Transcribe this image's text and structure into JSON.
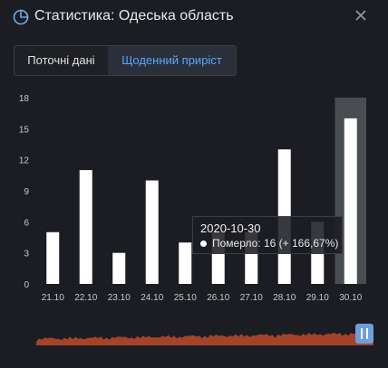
{
  "header": {
    "title": "Статистика: Одеська область",
    "icon": "pie-chart-icon",
    "close_icon": "close-icon"
  },
  "tabs": [
    {
      "label": "Поточні дані",
      "active": false
    },
    {
      "label": "Щоденний приріст",
      "active": true
    }
  ],
  "colors": {
    "background": "#1b1d22",
    "bar": "#ffffff",
    "accent": "#5aa8ff",
    "navigator": "#d2502d",
    "highlight": "#5a5d63"
  },
  "chart_data": {
    "type": "bar",
    "categories": [
      "21.10",
      "22.10",
      "23.10",
      "24.10",
      "25.10",
      "26.10",
      "27.10",
      "28.10",
      "29.10",
      "30.10"
    ],
    "series": [
      {
        "name": "Померло",
        "values": [
          5,
          11,
          3,
          10,
          4,
          5,
          5,
          13,
          6,
          16
        ]
      }
    ],
    "yticks": [
      0,
      3,
      6,
      9,
      12,
      15,
      18
    ],
    "ylim": [
      0,
      18
    ],
    "grid": false,
    "highlighted_category": "30.10"
  },
  "tooltip": {
    "date": "2020-10-30",
    "text": "Померло: 16 (+ 166,67%)"
  }
}
